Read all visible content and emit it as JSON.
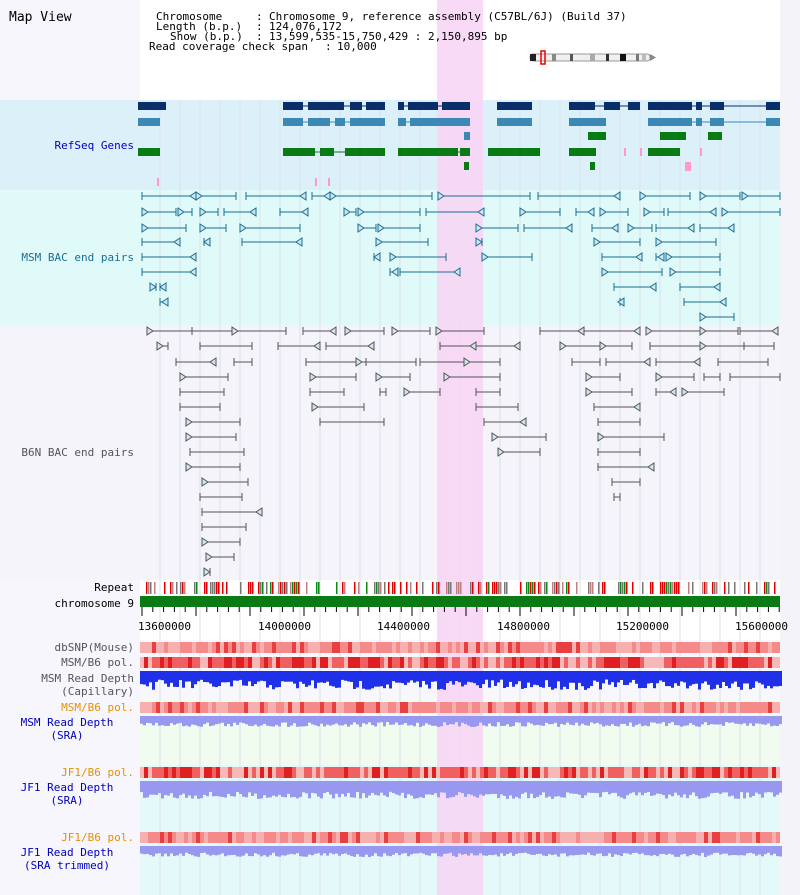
{
  "view_title": "Map View",
  "header": {
    "chromosome_key": "Chromosome",
    "chromosome_value": "Chromosome 9, reference assembly (C57BL/6J) (Build 37)",
    "length_key": "Length (b.p.)",
    "length_value": "124,076,172",
    "show_key": "Show (b.p.)",
    "show_value": "13,599,535-15,750,429 : 2,150,895 bp",
    "span_key": "Read coverage check span",
    "span_value": "10,000"
  },
  "tracks": {
    "refseq": "RefSeq Genes",
    "msm_bac": "MSM BAC end pairs",
    "b6n_bac": "B6N BAC end pairs",
    "repeat": "Repeat",
    "chromosome": "chromosome 9",
    "dbsnp": "dbSNP(Mouse)",
    "msm_pol": "MSM/B6 pol.",
    "msm_depth_cap_1": "MSM Read Depth",
    "msm_depth_cap_2": "(Capillary)",
    "msm_pol_sra": "MSM/B6 pol.",
    "msm_depth_sra_1": "MSM Read Depth",
    "msm_depth_sra_2": "(SRA)",
    "jf1_pol_1": "JF1/B6 pol.",
    "jf1_depth_sra_1": "JF1 Read Depth",
    "jf1_depth_sra_2": "(SRA)",
    "jf1_pol_2": "JF1/B6 pol.",
    "jf1_depth_trim_1": "JF1 Read Depth",
    "jf1_depth_trim_2": "(SRA trimmed)"
  },
  "axis_ticks": [
    "13600000",
    "14000000",
    "14400000",
    "14800000",
    "15200000",
    "15600000"
  ],
  "colors": {
    "refseq_bg": "#dcf0fa",
    "msm_bg": "#e0fafa",
    "b6n_bg": "#f4f4fa",
    "highlight": "#f8d4f4",
    "gene_dark": "#0a2e6a",
    "gene_mid": "#3b88b4",
    "gene_green": "#0a7a14",
    "msm_pair": "#1a6e90",
    "b6n_pair": "#555555",
    "chromosome_bar": "#0a7a14",
    "depth_blue": "#2030e8",
    "depth_lilac": "#9898f0",
    "label_blue": "#0000c0",
    "label_teal": "#1a6e90",
    "label_orange": "#e89000"
  }
}
